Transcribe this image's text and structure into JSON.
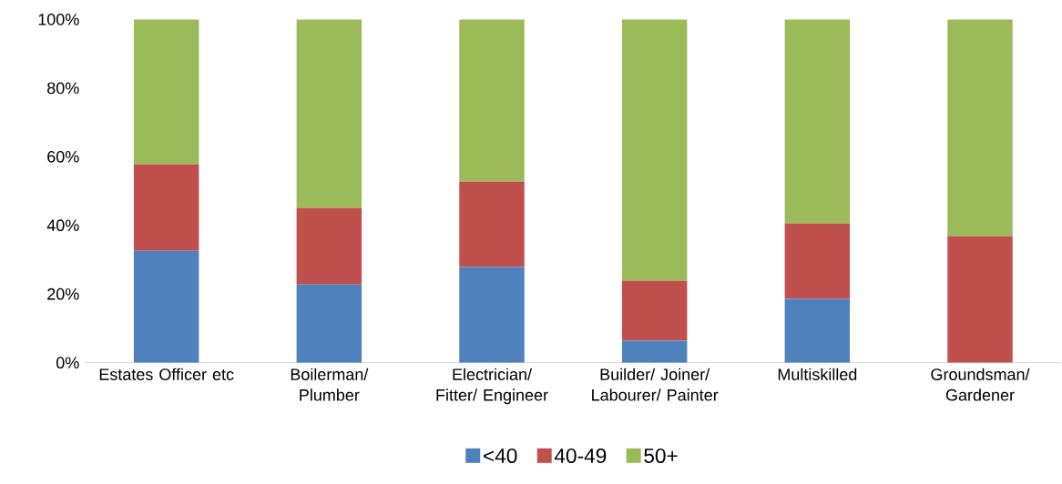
{
  "chart_data": {
    "type": "bar",
    "stacked": true,
    "categories": [
      "Estates Officer etc",
      "Boilerman/ Plumber",
      "Electrician/ Fitter/ Engineer",
      "Builder/ Joiner/ Labourer/ Painter",
      "Multiskilled",
      "Groundsman/ Gardener"
    ],
    "series": [
      {
        "name": "<40",
        "color": "#4f81bd",
        "values": [
          32.6,
          22.8,
          27.9,
          6.4,
          18.6,
          0
        ]
      },
      {
        "name": "40-49",
        "color": "#c0504d",
        "values": [
          25.2,
          22.3,
          24.9,
          17.5,
          22.0,
          36.9
        ]
      },
      {
        "name": "50+",
        "color": "#9bbb59",
        "values": [
          42.2,
          54.9,
          47.2,
          76.1,
          59.4,
          63.1
        ]
      }
    ],
    "ylim": [
      0,
      100
    ],
    "yticks": [
      {
        "value": 0,
        "label": "0%"
      },
      {
        "value": 20,
        "label": "20%"
      },
      {
        "value": 40,
        "label": "40%"
      },
      {
        "value": 60,
        "label": "60%"
      },
      {
        "value": 80,
        "label": "80%"
      },
      {
        "value": 100,
        "label": "100%"
      }
    ],
    "legend": "bottom",
    "grid": false
  }
}
